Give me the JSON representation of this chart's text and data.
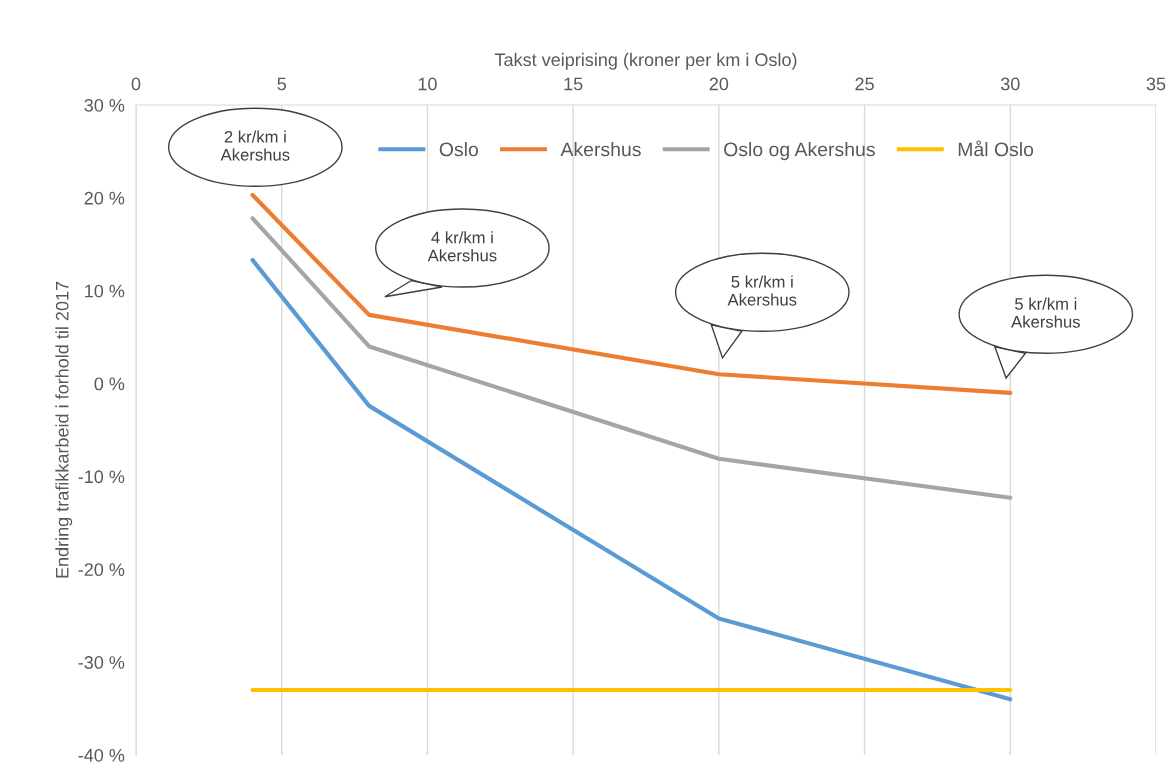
{
  "chart_data": {
    "type": "line",
    "xlabel": "Takst veiprising (kroner per km i Oslo)",
    "ylabel": "Endring trafikkarbeid i forhold til 2017",
    "series": [
      {
        "name": "Oslo",
        "color": "#5b9bd5",
        "x": [
          4,
          8,
          20,
          30
        ],
        "values": [
          13.3,
          -2.4,
          -25.3,
          -34.0
        ]
      },
      {
        "name": "Akershus",
        "color": "#ed7d31",
        "x": [
          4,
          8,
          20,
          30
        ],
        "values": [
          20.3,
          7.4,
          1.0,
          -1.0
        ]
      },
      {
        "name": "Oslo og Akershus",
        "color": "#a5a5a5",
        "x": [
          4,
          8,
          20,
          30
        ],
        "values": [
          17.8,
          4.0,
          -8.1,
          -12.3
        ]
      },
      {
        "name": "Mål Oslo",
        "color": "#ffc000",
        "x": [
          4,
          30
        ],
        "values": [
          -33,
          -33
        ]
      }
    ],
    "xlim": [
      0,
      35
    ],
    "xticks": [
      0,
      5,
      10,
      15,
      20,
      25,
      30,
      35
    ],
    "ylim": [
      -40,
      30
    ],
    "yticks": [
      {
        "value": -40,
        "label": "-40 %"
      },
      {
        "value": -30,
        "label": "-30 %"
      },
      {
        "value": -20,
        "label": "-20 %"
      },
      {
        "value": -10,
        "label": "-10 %"
      },
      {
        "value": 0,
        "label": "0 %"
      },
      {
        "value": 10,
        "label": "10 %"
      },
      {
        "value": 20,
        "label": "20 %"
      },
      {
        "value": 30,
        "label": "30 %"
      }
    ],
    "grid": "x",
    "legend": "top",
    "marker": "none",
    "line_style": "solid",
    "annotations": [
      "2 kr/km i\nAkershus",
      "4 kr/km i\nAkershus",
      "5 kr/km i\nAkershus",
      "5 kr/km i\nAkershus"
    ]
  }
}
